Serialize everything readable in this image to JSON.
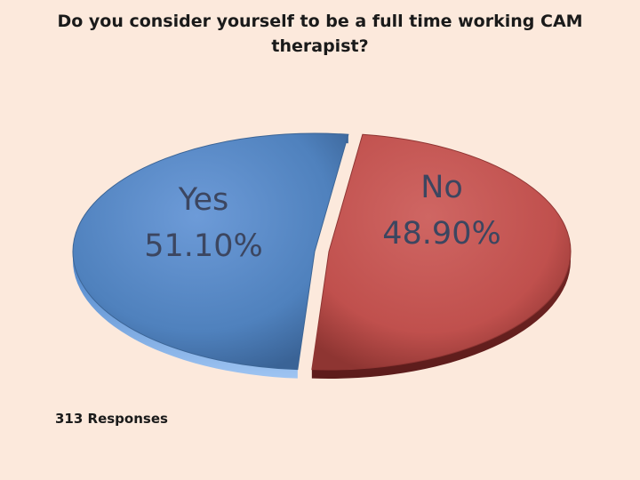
{
  "chart_data": {
    "type": "pie",
    "title": "Do you consider yourself to be a full time working CAM therapist?",
    "categories": [
      "Yes",
      "No"
    ],
    "values": [
      51.1,
      48.9
    ],
    "value_labels": [
      "51.10%",
      "48.90%"
    ],
    "colors": [
      "#4f81bd",
      "#c0504d"
    ],
    "legend": "none",
    "note": "313 Responses"
  }
}
